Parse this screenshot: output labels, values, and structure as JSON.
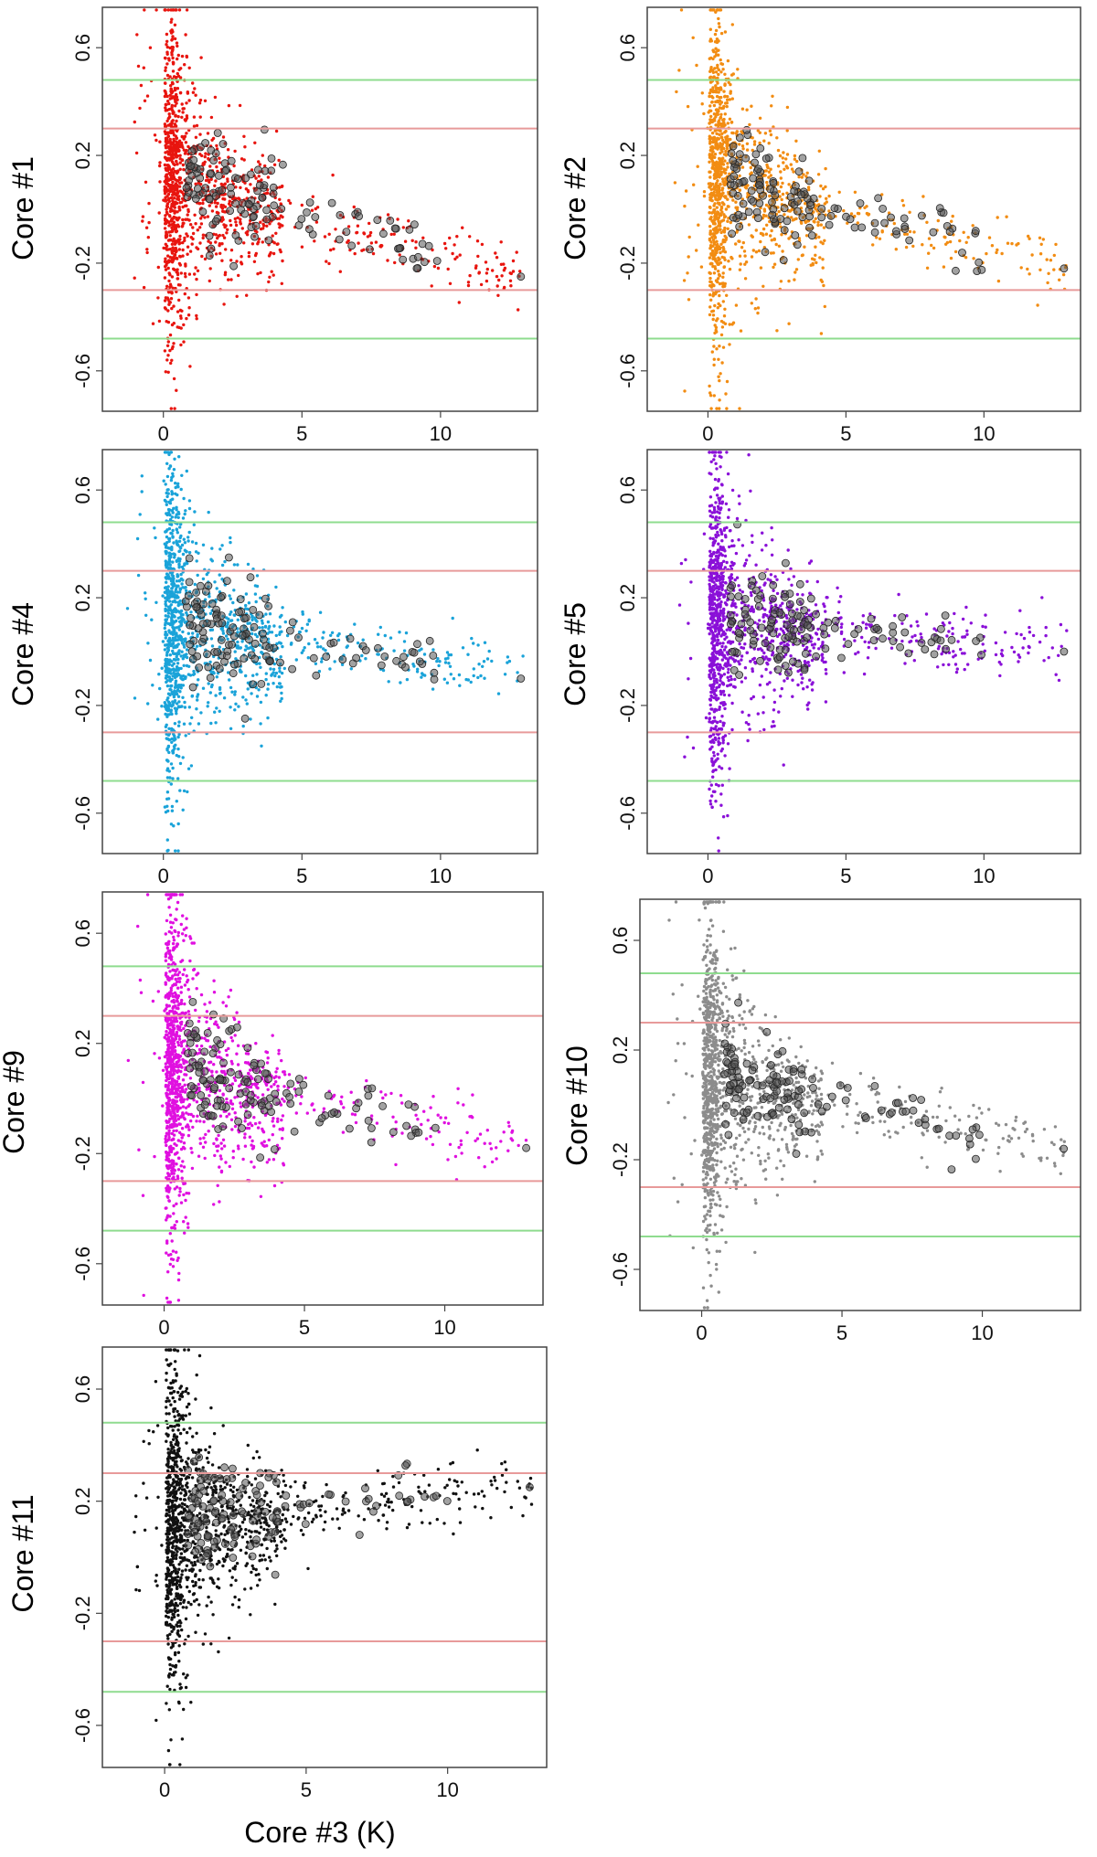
{
  "figure": {
    "xlabel": "Core #3 (K)"
  },
  "colors": {
    "green_line": "#8fdc8f",
    "red_line": "#e89a9a",
    "highlight_fill": "#555555"
  },
  "chart_data": [
    {
      "type": "scatter",
      "ylabel": "Core #1",
      "color": "#e8150f",
      "xlim": [
        -2.2,
        13.5
      ],
      "ylim": [
        -0.75,
        0.75
      ],
      "xticks": [
        "0",
        "5",
        "10"
      ],
      "yticks": [
        "-0.6",
        "-0.2",
        "0.2",
        "0.6"
      ],
      "hlines": {
        "green": [
          0.48,
          -0.48
        ],
        "red": [
          0.3,
          -0.3
        ]
      },
      "tail_y": -0.25,
      "tail_x_max": 13.0,
      "seed": 11
    },
    {
      "type": "scatter",
      "ylabel": "Core #2",
      "color": "#f28c12",
      "xlim": [
        -2.2,
        13.5
      ],
      "ylim": [
        -0.75,
        0.75
      ],
      "xticks": [
        "0",
        "5",
        "10"
      ],
      "yticks": [
        "-0.6",
        "-0.2",
        "0.2",
        "0.6"
      ],
      "hlines": {
        "green": [
          0.48,
          -0.48
        ],
        "red": [
          0.3,
          -0.3
        ]
      },
      "tail_y": -0.22,
      "tail_x_max": 13.0,
      "seed": 22
    },
    {
      "type": "scatter",
      "ylabel": "Core #4",
      "color": "#1aa3d9",
      "xlim": [
        -2.2,
        13.5
      ],
      "ylim": [
        -0.75,
        0.75
      ],
      "xticks": [
        "0",
        "5",
        "10"
      ],
      "yticks": [
        "-0.6",
        "-0.2",
        "0.2",
        "0.6"
      ],
      "hlines": {
        "green": [
          0.48,
          -0.48
        ],
        "red": [
          0.3,
          -0.3
        ]
      },
      "tail_y": -0.1,
      "tail_x_max": 13.0,
      "seed": 33
    },
    {
      "type": "scatter",
      "ylabel": "Core #5",
      "color": "#8a10d8",
      "xlim": [
        -2.2,
        13.5
      ],
      "ylim": [
        -0.75,
        0.75
      ],
      "xticks": [
        "0",
        "5",
        "10"
      ],
      "yticks": [
        "-0.6",
        "-0.2",
        "0.2",
        "0.6"
      ],
      "hlines": {
        "green": [
          0.48,
          -0.48
        ],
        "red": [
          0.3,
          -0.3
        ]
      },
      "tail_y": 0.0,
      "tail_x_max": 13.0,
      "seed": 44
    },
    {
      "type": "scatter",
      "ylabel": "Core #9",
      "color": "#e010e0",
      "xlim": [
        -2.2,
        13.5
      ],
      "ylim": [
        -0.75,
        0.75
      ],
      "xticks": [
        "0",
        "5",
        "10"
      ],
      "yticks": [
        "-0.6",
        "-0.2",
        "0.2",
        "0.6"
      ],
      "hlines": {
        "green": [
          0.48,
          -0.48
        ],
        "red": [
          0.3,
          -0.3
        ]
      },
      "tail_y": -0.18,
      "tail_x_max": 13.0,
      "seed": 55
    },
    {
      "type": "scatter",
      "ylabel": "Core #10",
      "color": "#8c8c8c",
      "xlim": [
        -2.2,
        13.5
      ],
      "ylim": [
        -0.75,
        0.75
      ],
      "xticks": [
        "0",
        "5",
        "10"
      ],
      "yticks": [
        "-0.6",
        "-0.2",
        "0.2",
        "0.6"
      ],
      "hlines": {
        "green": [
          0.48,
          -0.48
        ],
        "red": [
          0.3,
          -0.3
        ]
      },
      "tail_y": -0.16,
      "tail_x_max": 13.0,
      "seed": 66
    },
    {
      "type": "scatter",
      "ylabel": "Core #11",
      "color": "#111111",
      "xlim": [
        -2.2,
        13.5
      ],
      "ylim": [
        -0.75,
        0.75
      ],
      "xticks": [
        "0",
        "5",
        "10"
      ],
      "yticks": [
        "-0.6",
        "-0.2",
        "0.2",
        "0.6"
      ],
      "hlines": {
        "green": [
          0.48,
          -0.48
        ],
        "red": [
          0.3,
          -0.3
        ]
      },
      "tail_y": 0.25,
      "tail_x_max": 13.0,
      "seed": 77
    }
  ]
}
